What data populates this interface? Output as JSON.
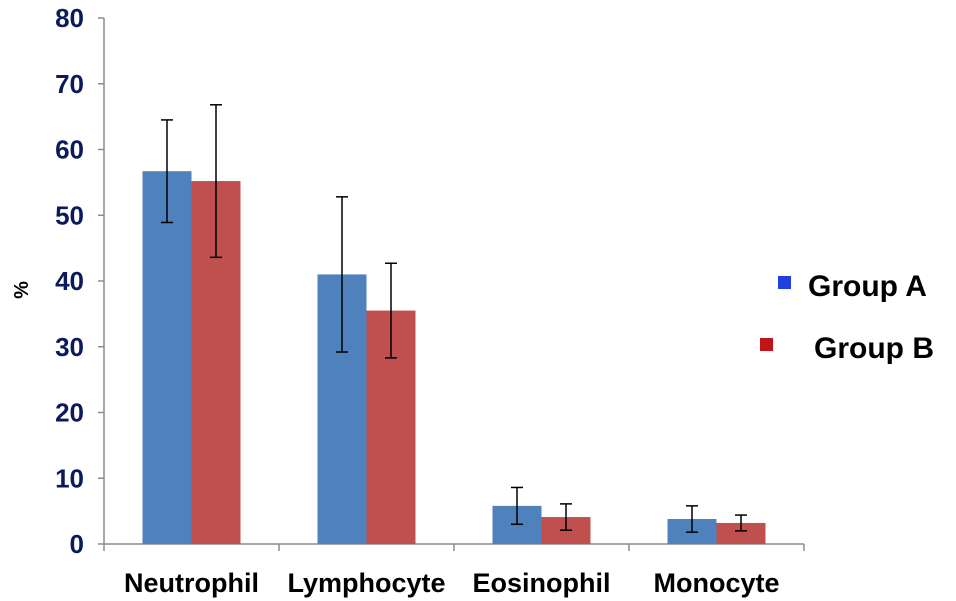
{
  "chart_data": {
    "type": "bar",
    "title": "",
    "xlabel": "",
    "ylabel": "%",
    "ylim": [
      0,
      80
    ],
    "yticks": [
      "0",
      "10",
      "20",
      "30",
      "40",
      "50",
      "60",
      "70",
      "80"
    ],
    "categories": [
      "Neutrophil",
      "Lymphocyte",
      "Eosinophil",
      "Monocyte"
    ],
    "series": [
      {
        "name": "Group A",
        "color": "#4f81bd",
        "legend_color": "#1f3fe0",
        "values": [
          56.7,
          41.0,
          5.8,
          3.8
        ],
        "errors": [
          7.8,
          11.8,
          2.8,
          2.0
        ]
      },
      {
        "name": "Group B",
        "color": "#c0504d",
        "legend_color": "#c0141a",
        "values": [
          55.2,
          35.5,
          4.1,
          3.2
        ],
        "errors": [
          11.6,
          7.2,
          2.0,
          1.2
        ]
      }
    ],
    "grid": false,
    "legend": "right",
    "error_bars": true
  }
}
